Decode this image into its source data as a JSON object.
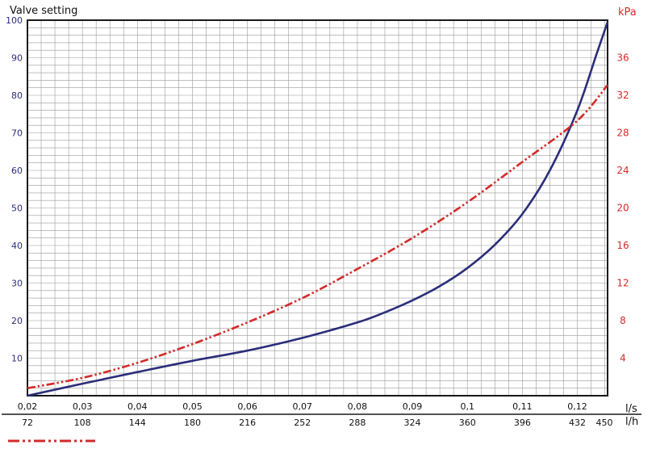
{
  "chart_data": {
    "type": "line",
    "ylabel_left": "Valve setting",
    "ylabel_right": "kPa",
    "xlabel_ls": "l/s",
    "xlabel_lh": "l/h",
    "xlim": [
      0.02,
      0.1255
    ],
    "ylim_left": [
      0,
      100
    ],
    "ylim_right": [
      0,
      40
    ],
    "grid": true,
    "x_ticks_ls": [
      "0,02",
      "0,03",
      "0,04",
      "0,05",
      "0,06",
      "0,07",
      "0,08",
      "0,09",
      "0,1",
      "0,11",
      "0,12"
    ],
    "x_ticks_ls_values": [
      0.02,
      0.03,
      0.04,
      0.05,
      0.06,
      0.07,
      0.08,
      0.09,
      0.1,
      0.11,
      0.12
    ],
    "x_ticks_lh": [
      "72",
      "108",
      "144",
      "180",
      "216",
      "252",
      "288",
      "324",
      "360",
      "396",
      "432",
      "450"
    ],
    "x_ticks_lh_values": [
      0.02,
      0.03,
      0.04,
      0.05,
      0.06,
      0.07,
      0.08,
      0.09,
      0.1,
      0.11,
      0.12,
      0.125
    ],
    "y_ticks_left": [
      "10",
      "20",
      "30",
      "40",
      "50",
      "60",
      "70",
      "80",
      "90",
      "100"
    ],
    "y_ticks_left_values": [
      10,
      20,
      30,
      40,
      50,
      60,
      70,
      80,
      90,
      100
    ],
    "y_ticks_right": [
      "4",
      "8",
      "12",
      "16",
      "20",
      "24",
      "28",
      "32",
      "36"
    ],
    "y_ticks_right_values": [
      4,
      8,
      12,
      16,
      20,
      24,
      28,
      32,
      36
    ],
    "series": [
      {
        "axis": "left",
        "color": "#2b2e7a",
        "style": "solid",
        "x": [
          0.02,
          0.03,
          0.04,
          0.05,
          0.06,
          0.07,
          0.08,
          0.085,
          0.09,
          0.095,
          0.1,
          0.105,
          0.11,
          0.115,
          0.12,
          0.1235,
          0.1255
        ],
        "y": [
          0,
          3.2,
          6.3,
          9.3,
          12.0,
          15.4,
          19.5,
          22.2,
          25.4,
          29.2,
          34.0,
          40.2,
          48.4,
          60.0,
          76.0,
          91.0,
          99.5
        ]
      },
      {
        "axis": "right",
        "color": "#d42a2a",
        "style": "dash-dot-dot",
        "x": [
          0.02,
          0.03,
          0.04,
          0.05,
          0.06,
          0.07,
          0.08,
          0.09,
          0.1,
          0.11,
          0.12,
          0.1255
        ],
        "y": [
          0.8,
          1.9,
          3.5,
          5.5,
          7.8,
          10.4,
          13.5,
          16.8,
          20.6,
          24.9,
          29.3,
          33.1
        ]
      }
    ]
  }
}
